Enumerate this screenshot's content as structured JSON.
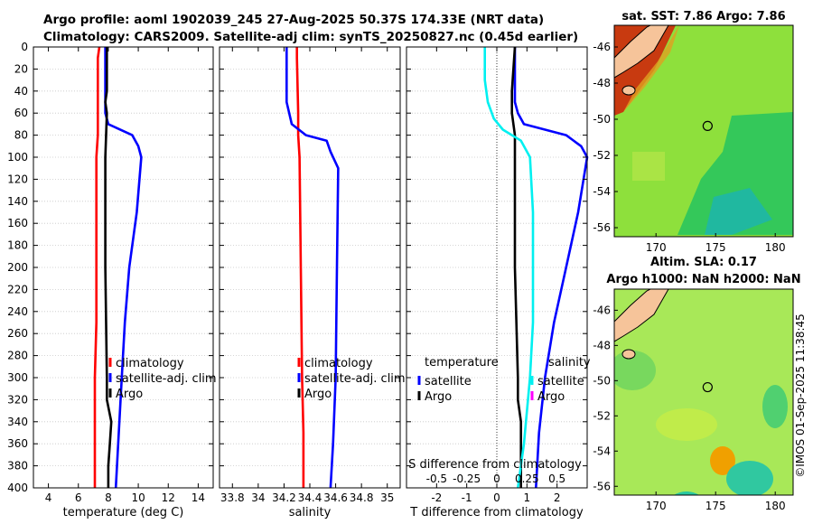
{
  "header": {
    "line1": "Argo profile: aoml 1902039_245 27-Aug-2025 50.37S 174.33E (NRT data)",
    "line2": "Climatology: CARS2009. Satellite-adj clim: synTS_20250827.nc (0.45d earlier)"
  },
  "colors": {
    "red": "#ff0000",
    "blue": "#0000ff",
    "black": "#000000",
    "cyan": "#00f0f0",
    "magenta": "#ff00ff"
  },
  "chart_data": [
    {
      "type": "line",
      "panel": "temperature",
      "xlabel": "temperature (deg C)",
      "xlim": [
        3,
        15
      ],
      "xticks": [
        4,
        6,
        8,
        10,
        12,
        14
      ],
      "ylim": [
        0,
        400
      ],
      "yticks": [
        0,
        20,
        40,
        60,
        80,
        100,
        120,
        140,
        160,
        180,
        200,
        220,
        240,
        260,
        280,
        300,
        320,
        340,
        360,
        380,
        400
      ],
      "y_reversed": true,
      "legend": [
        "climatology",
        "satellite-adj. clim",
        "Argo"
      ],
      "series": [
        {
          "name": "climatology",
          "color": "red",
          "points": [
            [
              7.4,
              0
            ],
            [
              7.3,
              10
            ],
            [
              7.3,
              40
            ],
            [
              7.3,
              60
            ],
            [
              7.3,
              80
            ],
            [
              7.2,
              100
            ],
            [
              7.2,
              150
            ],
            [
              7.2,
              200
            ],
            [
              7.2,
              250
            ],
            [
              7.1,
              300
            ],
            [
              7.1,
              350
            ],
            [
              7.1,
              400
            ]
          ]
        },
        {
          "name": "satellite-adj. clim",
          "color": "blue",
          "points": [
            [
              7.8,
              0
            ],
            [
              7.8,
              50
            ],
            [
              7.8,
              60
            ],
            [
              8.0,
              70
            ],
            [
              9.6,
              80
            ],
            [
              10.0,
              90
            ],
            [
              10.2,
              100
            ],
            [
              9.9,
              150
            ],
            [
              9.4,
              200
            ],
            [
              9.1,
              250
            ],
            [
              8.9,
              300
            ],
            [
              8.7,
              350
            ],
            [
              8.5,
              400
            ]
          ]
        },
        {
          "name": "Argo",
          "color": "black",
          "points": [
            [
              7.9,
              0
            ],
            [
              7.9,
              40
            ],
            [
              7.8,
              50
            ],
            [
              7.9,
              60
            ],
            [
              7.8,
              100
            ],
            [
              7.8,
              200
            ],
            [
              7.9,
              300
            ],
            [
              7.9,
              320
            ],
            [
              8.2,
              340
            ],
            [
              8.1,
              360
            ],
            [
              8.0,
              380
            ],
            [
              8.0,
              400
            ]
          ]
        }
      ]
    },
    {
      "type": "line",
      "panel": "salinity",
      "xlabel": "salinity",
      "xlim": [
        33.7,
        35.1
      ],
      "xticks": [
        33.8,
        34.0,
        34.2,
        34.4,
        34.6,
        34.8,
        35.0
      ],
      "xticklabels": [
        "33.8",
        "34",
        "34.2",
        "34.4",
        "34.6",
        "34.8",
        "35"
      ],
      "ylim": [
        0,
        400
      ],
      "y_reversed": true,
      "legend": [
        "climatology",
        "satellite-adj. clim",
        "Argo"
      ],
      "series": [
        {
          "name": "climatology",
          "color": "red",
          "points": [
            [
              34.3,
              0
            ],
            [
              34.3,
              10
            ],
            [
              34.31,
              60
            ],
            [
              34.31,
              80
            ],
            [
              34.32,
              100
            ],
            [
              34.33,
              200
            ],
            [
              34.34,
              300
            ],
            [
              34.35,
              350
            ],
            [
              34.35,
              400
            ]
          ]
        },
        {
          "name": "satellite-adj. clim",
          "color": "blue",
          "points": [
            [
              34.22,
              0
            ],
            [
              34.22,
              50
            ],
            [
              34.26,
              70
            ],
            [
              34.37,
              80
            ],
            [
              34.53,
              85
            ],
            [
              34.56,
              95
            ],
            [
              34.62,
              110
            ],
            [
              34.61,
              200
            ],
            [
              34.6,
              300
            ],
            [
              34.58,
              360
            ],
            [
              34.56,
              400
            ]
          ]
        }
      ]
    },
    {
      "type": "line",
      "panel": "difference",
      "xlabel": "T difference from climatology",
      "xlim": [
        -3,
        3
      ],
      "xticks": [
        -2,
        -1,
        0,
        1,
        2
      ],
      "secondary_xlabel": "S difference from climatology",
      "secondary_xticks": [
        -0.5,
        -0.25,
        0,
        0.25,
        0.5
      ],
      "secondary_xticklabels": [
        "-0.5",
        "-0.25",
        "0",
        "0.25",
        "0.5"
      ],
      "ylim": [
        0,
        400
      ],
      "y_reversed": true,
      "legend_temperature_title": "temperature",
      "legend_salinity_title": "salinity",
      "legend": [
        "satellite",
        "Argo",
        "satellite",
        "Argo"
      ],
      "series": [
        {
          "name": "T satellite",
          "color": "blue",
          "points": [
            [
              0.6,
              0
            ],
            [
              0.6,
              50
            ],
            [
              0.7,
              60
            ],
            [
              0.9,
              70
            ],
            [
              2.3,
              80
            ],
            [
              2.8,
              90
            ],
            [
              3.0,
              100
            ],
            [
              2.7,
              150
            ],
            [
              2.3,
              200
            ],
            [
              1.9,
              250
            ],
            [
              1.6,
              300
            ],
            [
              1.4,
              350
            ],
            [
              1.3,
              400
            ]
          ]
        },
        {
          "name": "T Argo",
          "color": "black",
          "points": [
            [
              0.6,
              0
            ],
            [
              0.5,
              40
            ],
            [
              0.5,
              60
            ],
            [
              0.6,
              80
            ],
            [
              0.6,
              100
            ],
            [
              0.6,
              200
            ],
            [
              0.7,
              300
            ],
            [
              0.7,
              320
            ],
            [
              0.8,
              340
            ],
            [
              0.8,
              360
            ],
            [
              0.8,
              380
            ],
            [
              0.8,
              400
            ]
          ]
        },
        {
          "name": "S satellite",
          "color": "cyan",
          "points": [
            [
              -0.4,
              0
            ],
            [
              -0.4,
              30
            ],
            [
              -0.3,
              50
            ],
            [
              -0.1,
              65
            ],
            [
              0.2,
              75
            ],
            [
              0.8,
              85
            ],
            [
              1.1,
              100
            ],
            [
              1.2,
              150
            ],
            [
              1.2,
              200
            ],
            [
              1.2,
              250
            ],
            [
              1.1,
              300
            ],
            [
              0.9,
              360
            ],
            [
              0.7,
              400
            ]
          ]
        }
      ]
    },
    {
      "type": "heatmap",
      "panel": "satellite-sst-map",
      "title": "sat. SST: 7.86 Argo: 7.86",
      "xlim": [
        166.5,
        181.5
      ],
      "xticks": [
        170,
        175,
        180
      ],
      "ylim": [
        -56.5,
        -44.8
      ],
      "yticks": [
        -46,
        -48,
        -50,
        -52,
        -54,
        -56
      ],
      "profile_marker": [
        174.33,
        -50.37
      ]
    },
    {
      "type": "heatmap",
      "panel": "altimetry-sla-map",
      "title_line1": "Altim. SLA: 0.17",
      "title_line2": "Argo h1000: NaN h2000: NaN",
      "xlim": [
        166.5,
        181.5
      ],
      "xticks": [
        170,
        175,
        180
      ],
      "ylim": [
        -56.5,
        -44.8
      ],
      "yticks": [
        -46,
        -48,
        -50,
        -52,
        -54,
        -56
      ],
      "profile_marker": [
        174.33,
        -50.37
      ]
    }
  ],
  "footer": {
    "stamp": "©IMOS 01-Sep-2025 11:38:45"
  }
}
